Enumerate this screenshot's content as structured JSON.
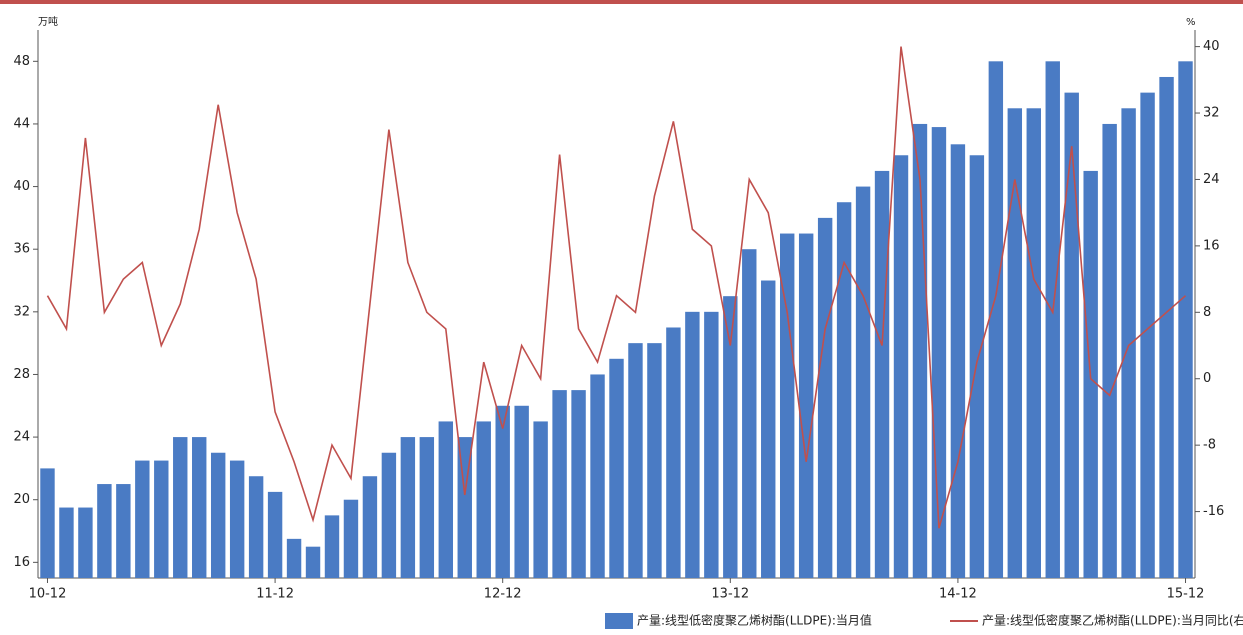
{
  "chart_data": {
    "type": "bar-line",
    "y_unit": "万吨",
    "y2_unit": "%",
    "categories": [
      "10-12",
      null,
      null,
      null,
      null,
      null,
      null,
      null,
      null,
      null,
      null,
      null,
      "11-12",
      null,
      null,
      null,
      null,
      null,
      null,
      null,
      null,
      null,
      null,
      null,
      "12-12",
      null,
      null,
      null,
      null,
      null,
      null,
      null,
      null,
      null,
      null,
      null,
      "13-12",
      null,
      null,
      null,
      null,
      null,
      null,
      null,
      null,
      null,
      null,
      null,
      "14-12",
      null,
      null,
      null,
      null,
      null,
      null,
      null,
      null,
      null,
      null,
      null,
      "15-12"
    ],
    "series": [
      {
        "name": "产量:线型低密度聚乙烯树酯(LLDPE):当月值",
        "color": "#4a7bc4",
        "kind": "bar",
        "values": [
          22,
          19.5,
          19.5,
          21,
          21,
          22.5,
          22.5,
          24,
          24,
          23,
          22.5,
          21.5,
          20.5,
          17.5,
          17,
          19,
          20,
          21.5,
          23,
          24,
          24,
          25,
          24,
          25,
          26,
          26,
          25,
          27,
          27,
          28,
          29,
          30,
          30,
          31,
          32,
          32,
          33,
          36,
          34,
          37,
          37,
          38,
          39,
          40,
          41,
          42,
          44,
          43.8,
          42.7,
          42,
          48,
          45,
          45,
          48,
          46,
          41,
          44,
          45,
          46,
          47,
          48
        ]
      },
      {
        "name": "产量:线型低密度聚乙烯树酯(LLDPE):当月同比(右轴)",
        "color": "#c0504d",
        "kind": "line",
        "axis": "y2",
        "values": [
          10,
          6,
          29,
          8,
          12,
          14,
          4,
          9,
          18,
          33,
          20,
          12,
          -4,
          -10,
          -17,
          -8,
          -12,
          9,
          30,
          14,
          8,
          6,
          -14,
          2,
          -6,
          4,
          0,
          27,
          6,
          2,
          10,
          8,
          22,
          31,
          18,
          16,
          4,
          24,
          20,
          8,
          -10,
          6,
          14,
          10,
          4,
          40,
          24,
          -18,
          -10,
          2,
          10,
          24,
          12,
          8,
          28,
          0,
          -2,
          4,
          6,
          8,
          10
        ]
      }
    ],
    "ylim": [
      15,
      50
    ],
    "yticks": [
      16,
      20,
      24,
      28,
      32,
      36,
      40,
      44,
      48
    ],
    "y2lim": [
      -24,
      42
    ],
    "y2ticks": [
      -16,
      -8,
      0,
      8,
      16,
      24,
      32,
      40
    ]
  }
}
